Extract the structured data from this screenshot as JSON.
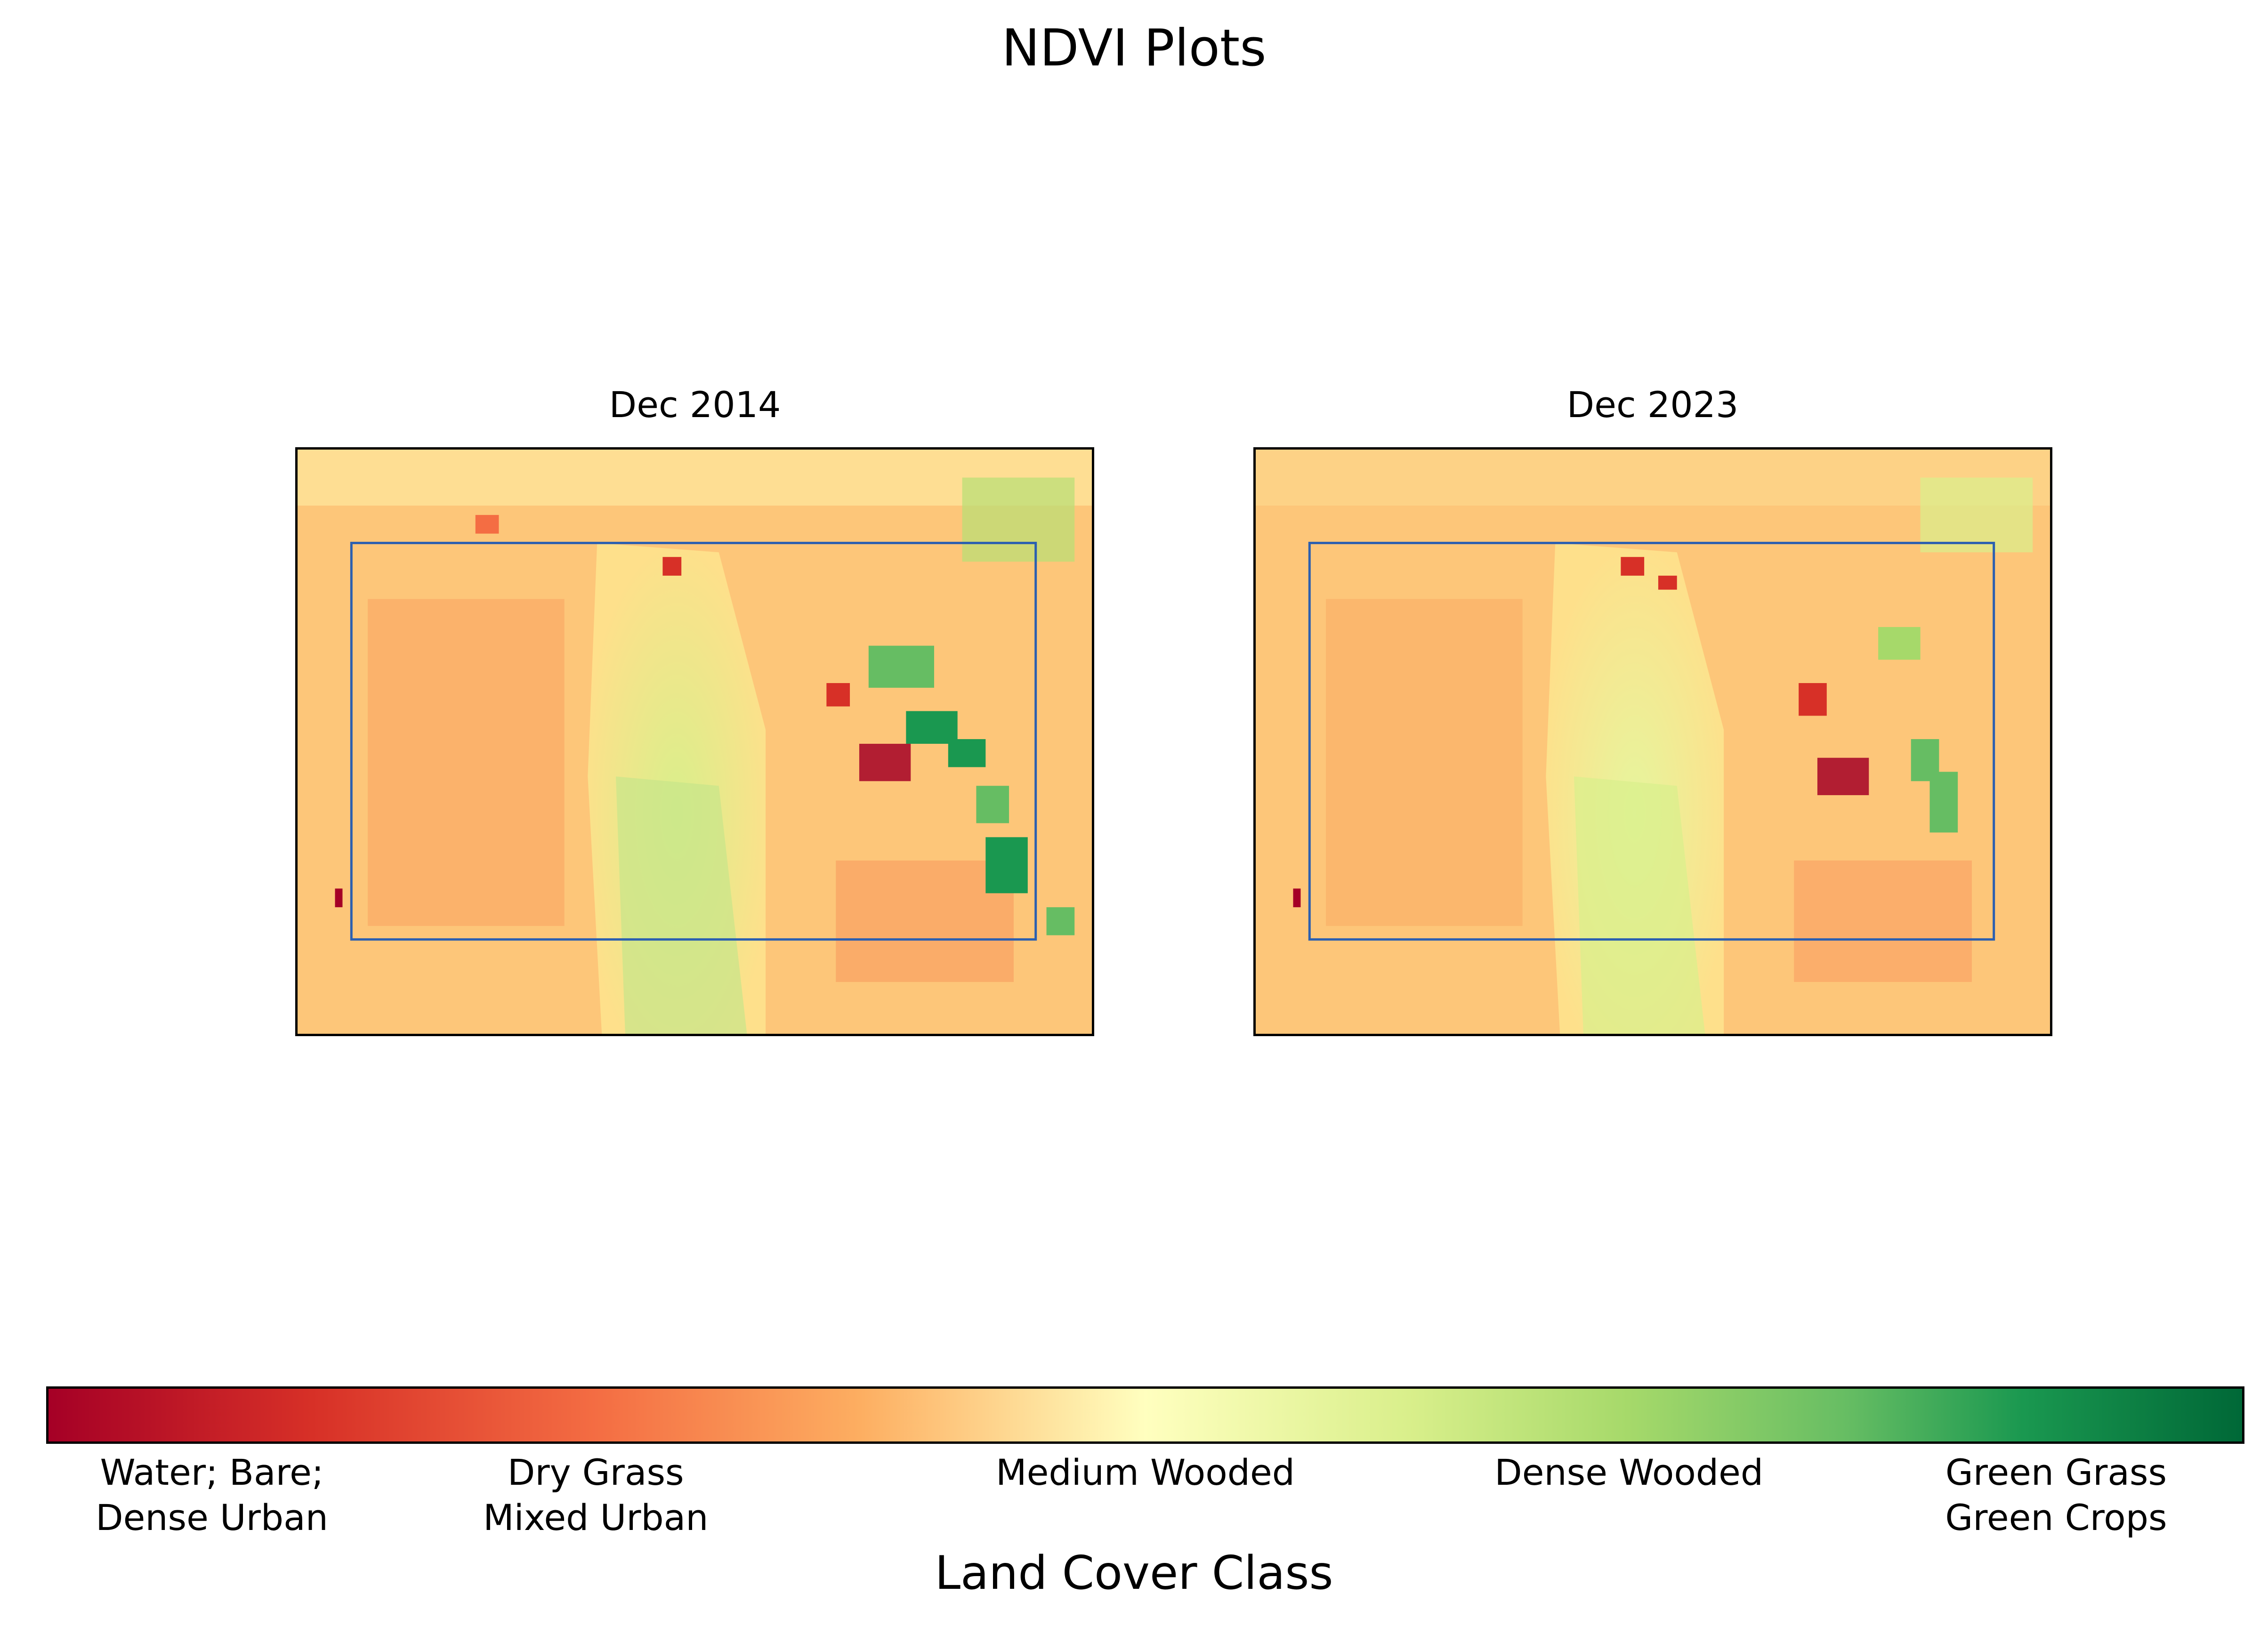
{
  "chart_data": {
    "type": "heatmap",
    "title": "NDVI Plots",
    "panels": [
      {
        "title": "Dec 2014"
      },
      {
        "title": "Dec 2023"
      }
    ],
    "colormap": "RdYlGn",
    "colorbar": {
      "label": "Land Cover Class",
      "ticks": [
        "Water; Bare;\nDense Urban",
        "Dry Grass\nMixed Urban",
        "Medium Wooded",
        "Dense Wooded",
        "Green Grass\nGreen Crops"
      ],
      "tick_positions": [
        0.05,
        0.25,
        0.5,
        0.72,
        0.94
      ]
    },
    "colors": {
      "red": "#a50026",
      "orange": "#f46d43",
      "light_orange": "#fdae61",
      "yellow": "#ffffbf",
      "light_green": "#a6d96a",
      "green": "#1a9850",
      "dark_green": "#006837",
      "roi_box": "#2b5fb0"
    },
    "legend": null
  }
}
